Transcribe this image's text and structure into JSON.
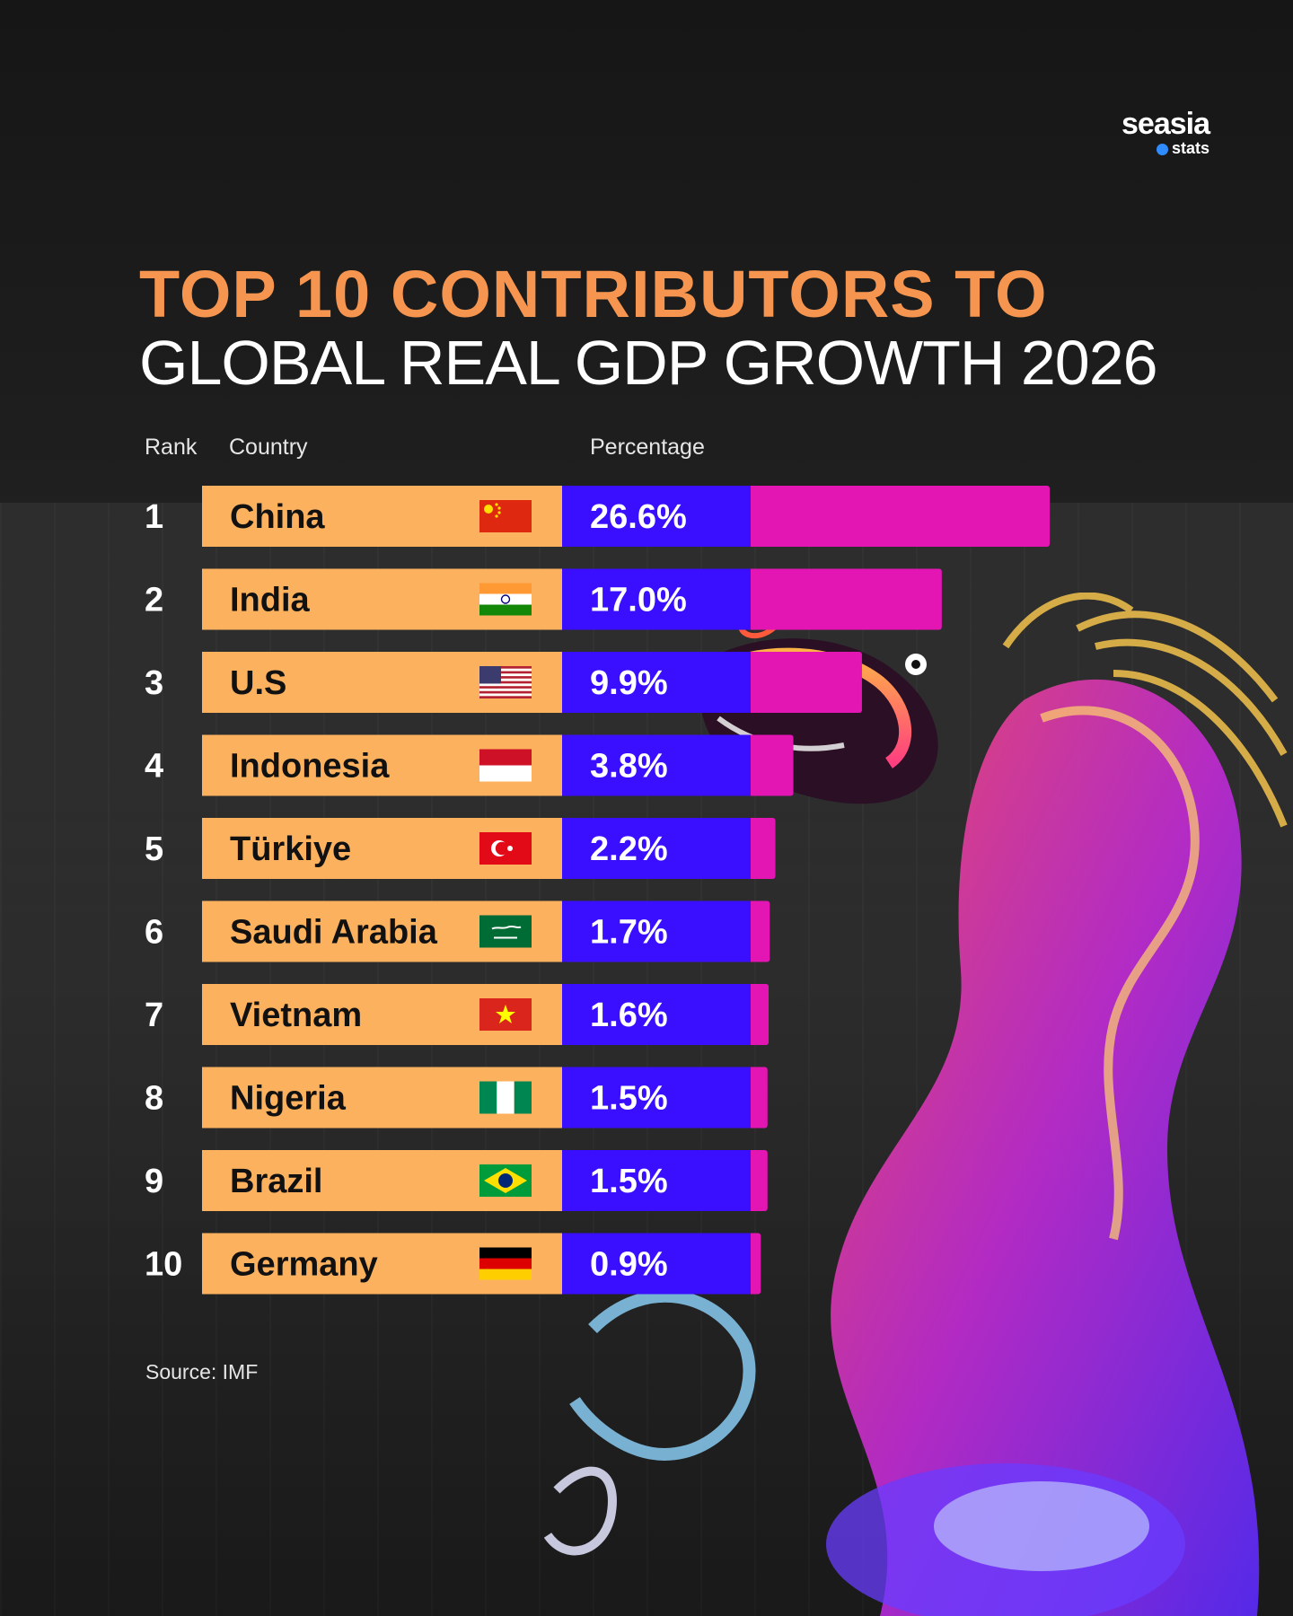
{
  "brand": {
    "name": "seasia",
    "sub": "stats"
  },
  "chart_data": {
    "type": "bar",
    "title_line1": "TOP 10 CONTRIBUTORS TO",
    "title_line2": "GLOBAL REAL GDP GROWTH 2026",
    "columns": {
      "rank": "Rank",
      "country": "Country",
      "value": "Percentage"
    },
    "unit": "%",
    "rows": [
      {
        "rank": "1",
        "country": "China",
        "value": 26.6,
        "label": "26.6%",
        "flag": "china-flag"
      },
      {
        "rank": "2",
        "country": "India",
        "value": 17.0,
        "label": "17.0%",
        "flag": "india-flag"
      },
      {
        "rank": "3",
        "country": "U.S",
        "value": 9.9,
        "label": "9.9%",
        "flag": "us-flag"
      },
      {
        "rank": "4",
        "country": "Indonesia",
        "value": 3.8,
        "label": "3.8%",
        "flag": "indonesia-flag"
      },
      {
        "rank": "5",
        "country": "Türkiye",
        "value": 2.2,
        "label": "2.2%",
        "flag": "turkiye-flag"
      },
      {
        "rank": "6",
        "country": "Saudi Arabia",
        "value": 1.7,
        "label": "1.7%",
        "flag": "saudi-arabia-flag"
      },
      {
        "rank": "7",
        "country": "Vietnam",
        "value": 1.6,
        "label": "1.6%",
        "flag": "vietnam-flag"
      },
      {
        "rank": "8",
        "country": "Nigeria",
        "value": 1.5,
        "label": "1.5%",
        "flag": "nigeria-flag"
      },
      {
        "rank": "9",
        "country": "Brazil",
        "value": 1.5,
        "label": "1.5%",
        "flag": "brazil-flag"
      },
      {
        "rank": "10",
        "country": "Germany",
        "value": 0.9,
        "label": "0.9%",
        "flag": "germany-flag"
      }
    ],
    "xlim": [
      0,
      26.6
    ],
    "source": "Source: IMF"
  },
  "colors": {
    "title_accent": "#f5954f",
    "country_cell": "#fbb15e",
    "value_cell": "#3a0fff",
    "bar": "#e316b4"
  }
}
